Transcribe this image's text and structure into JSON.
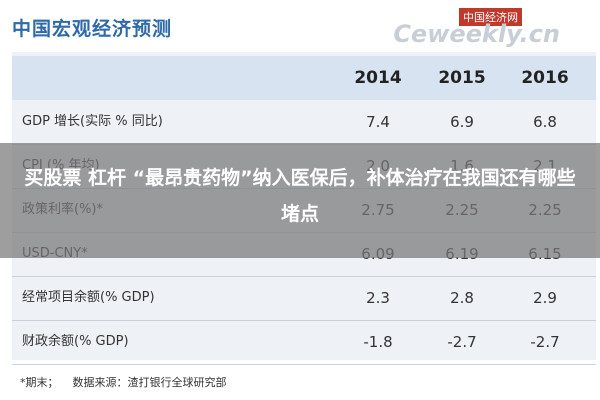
{
  "header": {
    "title": "中国宏观经济预测",
    "logo_cn": "中国经济网",
    "logo_en": "Ceweekly.cn"
  },
  "table": {
    "columns": [
      "2014",
      "2015",
      "2016"
    ],
    "rows": [
      [
        "GDP 增长(实际 % 同比)",
        "7.4",
        "6.9",
        "6.8"
      ],
      [
        "CPI (% 年均)",
        "2.0",
        "1.6",
        "2.1"
      ],
      [
        "政策利率(%)*",
        "2.75",
        "2.25",
        "2.25"
      ],
      [
        "USD-CNY*",
        "6.09",
        "6.19",
        "6.15"
      ],
      [
        "经常项目余额(% GDP)",
        "2.3",
        "2.8",
        "2.9"
      ],
      [
        "财政余额(% GDP)",
        "-1.8",
        "-2.7",
        "-2.7"
      ]
    ]
  },
  "footnote": "*期末；    数据来源：渣打银行全球研究部",
  "overlay": {
    "headline": "买股票 杠杆 “最昂贵药物”纳入医保后，补体治疗在我国还有哪些堵点"
  }
}
